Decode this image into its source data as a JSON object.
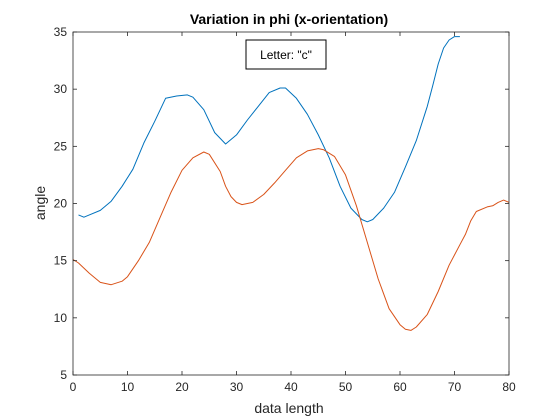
{
  "chart_data": {
    "type": "line",
    "title": "Variation in phi (x-orientation)",
    "xlabel": "data length",
    "ylabel": "angle",
    "xlim": [
      0,
      80
    ],
    "ylim": [
      5,
      35
    ],
    "xticks": [
      0,
      10,
      20,
      30,
      40,
      50,
      60,
      70,
      80
    ],
    "yticks": [
      5,
      10,
      15,
      20,
      25,
      30,
      35
    ],
    "grid": false,
    "annotation": "Letter: \"c\"",
    "series": [
      {
        "color": "#0072bd",
        "x": [
          1,
          2,
          3,
          5,
          7,
          9,
          11,
          13,
          15,
          17,
          19,
          21,
          22,
          24,
          26,
          28,
          30,
          32,
          34,
          36,
          38,
          39,
          41,
          43,
          45,
          47,
          49,
          51,
          53,
          54,
          55,
          57,
          59,
          61,
          63,
          65,
          66,
          67,
          68,
          69,
          70,
          71
        ],
        "y": [
          19.0,
          18.8,
          19.0,
          19.4,
          20.2,
          21.5,
          23.0,
          25.3,
          27.2,
          29.2,
          29.4,
          29.5,
          29.3,
          28.2,
          26.2,
          25.2,
          26.0,
          27.3,
          28.5,
          29.7,
          30.1,
          30.1,
          29.2,
          27.8,
          26.0,
          24.0,
          21.5,
          19.6,
          18.6,
          18.4,
          18.6,
          19.6,
          21.0,
          23.2,
          25.5,
          28.5,
          30.3,
          32.2,
          33.6,
          34.3,
          34.6,
          34.6
        ]
      },
      {
        "color": "#d95319",
        "x": [
          0,
          1,
          3,
          5,
          7,
          9,
          10,
          12,
          14,
          16,
          18,
          20,
          22,
          24,
          25,
          27,
          28,
          29,
          30,
          31,
          33,
          35,
          37,
          39,
          41,
          43,
          45,
          46,
          48,
          50,
          52,
          54,
          56,
          58,
          60,
          61,
          62,
          63,
          65,
          67,
          69,
          71,
          72,
          73,
          74,
          76,
          77,
          78,
          79,
          80
        ],
        "y": [
          15.1,
          14.8,
          13.9,
          13.1,
          12.9,
          13.2,
          13.6,
          15.0,
          16.6,
          18.8,
          21.0,
          22.9,
          24.0,
          24.5,
          24.3,
          22.8,
          21.5,
          20.6,
          20.1,
          19.9,
          20.1,
          20.8,
          21.8,
          22.9,
          24.0,
          24.6,
          24.8,
          24.7,
          24.1,
          22.5,
          19.8,
          16.6,
          13.4,
          10.8,
          9.4,
          9.0,
          8.9,
          9.2,
          10.3,
          12.3,
          14.6,
          16.4,
          17.3,
          18.5,
          19.3,
          19.7,
          19.8,
          20.1,
          20.3,
          20.1
        ]
      }
    ]
  }
}
